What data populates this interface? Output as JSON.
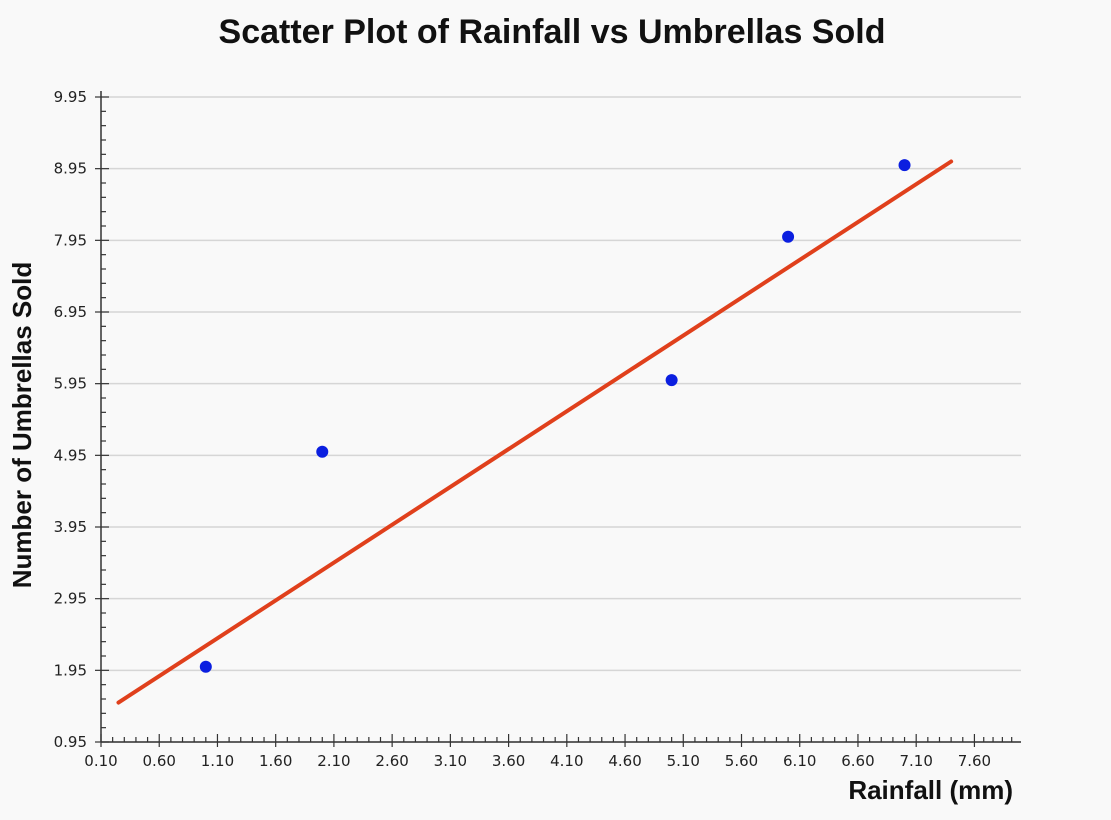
{
  "chart_data": {
    "type": "scatter",
    "title": "Scatter Plot of Rainfall vs Umbrellas Sold",
    "xlabel": "Rainfall (mm)",
    "ylabel": "Number of Umbrellas Sold",
    "xlim": [
      0.1,
      8.0
    ],
    "ylim": [
      0.95,
      9.95
    ],
    "x_ticks": [
      "0.10",
      "0.60",
      "1.10",
      "1.60",
      "2.10",
      "2.60",
      "3.10",
      "3.60",
      "4.10",
      "4.60",
      "5.10",
      "5.60",
      "6.10",
      "6.60",
      "7.10",
      "7.60"
    ],
    "y_ticks": [
      "0.95",
      "1.95",
      "2.95",
      "3.95",
      "4.95",
      "5.95",
      "6.95",
      "7.95",
      "8.95",
      "9.95"
    ],
    "grid": true,
    "colors": {
      "points": "#0b1fe0",
      "trendline": "#e0401c",
      "grid": "#d6d6d6"
    },
    "series": [
      {
        "x": [
          1,
          2,
          5,
          6,
          7
        ],
        "y": [
          2,
          5,
          6,
          8,
          9
        ]
      }
    ],
    "trendline": {
      "x": [
        0.25,
        7.4
      ],
      "y": [
        1.5,
        9.05
      ]
    }
  }
}
